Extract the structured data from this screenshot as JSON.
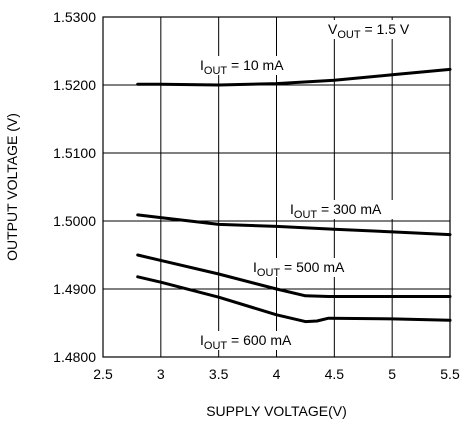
{
  "chart_data": {
    "type": "line",
    "xlabel": "SUPPLY VOLTAGE(V)",
    "ylabel": "OUTPUT VOLTAGE (V)",
    "xlim": [
      2.5,
      5.5
    ],
    "ylim": [
      1.48,
      1.53
    ],
    "x_ticks": [
      "2.5",
      "3",
      "3.5",
      "4",
      "4.5",
      "5",
      "5.5"
    ],
    "y_ticks": [
      "1.4800",
      "1.4900",
      "1.5000",
      "1.5100",
      "1.5200",
      "1.5300"
    ],
    "grid": true,
    "annotation": {
      "prefix": "V",
      "sub": "OUT",
      "suffix": " = 1.5 V"
    },
    "series": [
      {
        "name": "10 mA",
        "label": {
          "prefix": "I",
          "sub": "OUT",
          "suffix": " = 10 mA"
        },
        "x": [
          2.8,
          3.0,
          3.5,
          4.0,
          4.5,
          5.0,
          5.5
        ],
        "values": [
          1.5201,
          1.5201,
          1.52,
          1.5202,
          1.5207,
          1.5215,
          1.5223
        ]
      },
      {
        "name": "300 mA",
        "label": {
          "prefix": "I",
          "sub": "OUT",
          "suffix": " = 300 mA"
        },
        "x": [
          2.8,
          3.0,
          3.5,
          4.0,
          4.5,
          5.0,
          5.5
        ],
        "values": [
          1.5009,
          1.5005,
          1.4995,
          1.4992,
          1.4988,
          1.4984,
          1.498
        ]
      },
      {
        "name": "500 mA",
        "label": {
          "prefix": "I",
          "sub": "OUT",
          "suffix": " = 500 mA"
        },
        "x": [
          2.8,
          3.0,
          3.5,
          4.0,
          4.25,
          4.45,
          5.0,
          5.5
        ],
        "values": [
          1.495,
          1.4942,
          1.4922,
          1.49,
          1.489,
          1.4889,
          1.4889,
          1.4889
        ]
      },
      {
        "name": "600 mA",
        "label": {
          "prefix": "I",
          "sub": "OUT",
          "suffix": " = 600 mA"
        },
        "x": [
          2.8,
          3.0,
          3.5,
          4.0,
          4.25,
          4.35,
          4.45,
          5.0,
          5.5
        ],
        "values": [
          1.4918,
          1.491,
          1.4888,
          1.4862,
          1.4852,
          1.4853,
          1.4857,
          1.4856,
          1.4854
        ]
      }
    ]
  }
}
